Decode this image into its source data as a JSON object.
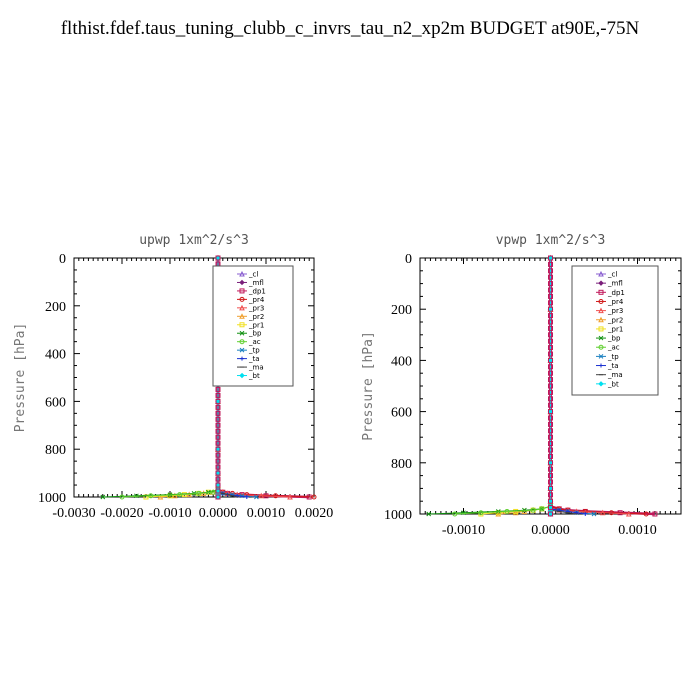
{
  "title": "flthist.fdef.taus_tuning_clubb_c_invrs_tau_n2_xp2m  BUDGET at90E,-75N",
  "colors": {
    "_cl": "#8a5fd0",
    "_mfl": "#7a1f7a",
    "_dp1": "#c0185a",
    "_pr4": "#d01818",
    "_pr3": "#f05050",
    "_pr2": "#f0a030",
    "_pr1": "#f0e020",
    "_bp": "#109010",
    "_ac": "#60d030",
    "_tp": "#1a80c0",
    "_ta": "#1a30d0",
    "_ma": "#404040",
    "_bt": "#00e0f0"
  },
  "chart_data": [
    {
      "type": "line",
      "title": "upwp   1xm^2/s^3",
      "ylabel": "Pressure [hPa]",
      "xlabel": "",
      "xlim": [
        -0.003,
        0.002
      ],
      "ylim": [
        1000,
        0
      ],
      "xticks": [
        "-0.0030",
        "-0.0020",
        "-0.0010",
        "0.0000",
        "0.0010",
        "0.0020"
      ],
      "xtick_values": [
        -0.003,
        -0.002,
        -0.001,
        0.0,
        0.001,
        0.002
      ],
      "yticks": [
        "0",
        "200",
        "400",
        "600",
        "800",
        "1000"
      ],
      "ytick_values": [
        0,
        200,
        400,
        600,
        800,
        1000
      ],
      "legend_position": "top-right",
      "legend": [
        "_cl",
        "_mfl",
        "_dp1",
        "_pr4",
        "_pr3",
        "_pr2",
        "_pr1",
        "_bp",
        "_ac",
        "_tp",
        "_ta",
        "_ma",
        "_bt"
      ],
      "pressure": [
        1000,
        995,
        990,
        985,
        980,
        970,
        950,
        900,
        800,
        600,
        400,
        200,
        0
      ],
      "series": [
        {
          "name": "_cl",
          "values": [
            0,
            0,
            0,
            0,
            0,
            0,
            0,
            0,
            0,
            0,
            0,
            0,
            0
          ]
        },
        {
          "name": "_mfl",
          "values": [
            0,
            0,
            0,
            0,
            0,
            0,
            0,
            0,
            0,
            0,
            0,
            0,
            0
          ]
        },
        {
          "name": "_dp1",
          "values": [
            0.0019,
            0.001,
            0.0005,
            0.0002,
            0.0001,
            0,
            0,
            0,
            0,
            0,
            0,
            0,
            0
          ]
        },
        {
          "name": "_pr4",
          "values": [
            0.002,
            0.0012,
            0.0006,
            0.0003,
            0.0001,
            0,
            0,
            0,
            0,
            0,
            0,
            0,
            0
          ]
        },
        {
          "name": "_pr3",
          "values": [
            0.0015,
            0.0009,
            0.0004,
            0.0002,
            0.0001,
            0,
            0,
            0,
            0,
            0,
            0,
            0,
            0
          ]
        },
        {
          "name": "_pr2",
          "values": [
            -0.0012,
            -0.0009,
            -0.0006,
            -0.0003,
            -0.0001,
            0,
            0,
            0,
            0,
            0,
            0,
            0,
            0
          ]
        },
        {
          "name": "_pr1",
          "values": [
            -0.0015,
            -0.001,
            -0.0007,
            -0.0004,
            -0.0002,
            0,
            0,
            0,
            0,
            0,
            0,
            0,
            0
          ]
        },
        {
          "name": "_bp",
          "values": [
            -0.0024,
            -0.0017,
            -0.001,
            -0.0005,
            -0.0002,
            0,
            0,
            0,
            0,
            0,
            0,
            0,
            0
          ]
        },
        {
          "name": "_ac",
          "values": [
            -0.002,
            -0.0014,
            -0.0008,
            -0.0004,
            -0.0001,
            0,
            0,
            0,
            0,
            0,
            0,
            0,
            0
          ]
        },
        {
          "name": "_tp",
          "values": [
            0.0008,
            0.0005,
            0.0003,
            0.0001,
            0,
            0,
            0,
            0,
            0,
            0,
            0,
            0,
            0
          ]
        },
        {
          "name": "_ta",
          "values": [
            0.0006,
            0.0004,
            0.0002,
            0.0001,
            0,
            0,
            0,
            0,
            0,
            0,
            0,
            0,
            0
          ]
        },
        {
          "name": "_ma",
          "values": [
            0.0004,
            0.0003,
            0.0002,
            0.0001,
            0,
            0,
            0,
            0,
            0,
            0,
            0,
            0,
            0
          ]
        },
        {
          "name": "_bt",
          "values": [
            0,
            0,
            0,
            0,
            0,
            0,
            0,
            0,
            0,
            0,
            0,
            0,
            0
          ]
        }
      ]
    },
    {
      "type": "line",
      "title": "vpwp   1xm^2/s^3",
      "ylabel": "Pressure [hPa]",
      "xlabel": "",
      "xlim": [
        -0.0015,
        0.0015
      ],
      "ylim": [
        1000,
        0
      ],
      "xticks": [
        "-0.0010",
        "0.0000",
        "0.0010"
      ],
      "xtick_values": [
        -0.001,
        0.0,
        0.001
      ],
      "yticks": [
        "0",
        "200",
        "400",
        "600",
        "800",
        "1000"
      ],
      "ytick_values": [
        0,
        200,
        400,
        600,
        800,
        1000
      ],
      "legend_position": "top-right",
      "legend": [
        "_cl",
        "_mfl",
        "_dp1",
        "_pr4",
        "_pr3",
        "_pr2",
        "_pr1",
        "_bp",
        "_ac",
        "_tp",
        "_ta",
        "_ma",
        "_bt"
      ],
      "pressure": [
        1000,
        995,
        990,
        985,
        980,
        970,
        950,
        900,
        800,
        600,
        400,
        200,
        0
      ],
      "series": [
        {
          "name": "_cl",
          "values": [
            0,
            0,
            0,
            0,
            0,
            0,
            0,
            0,
            0,
            0,
            0,
            0,
            0
          ]
        },
        {
          "name": "_mfl",
          "values": [
            0,
            0,
            0,
            0,
            0,
            0,
            0,
            0,
            0,
            0,
            0,
            0,
            0
          ]
        },
        {
          "name": "_dp1",
          "values": [
            0.0012,
            0.0008,
            0.0004,
            0.0002,
            0.0001,
            0,
            0,
            0,
            0,
            0,
            0,
            0,
            0
          ]
        },
        {
          "name": "_pr4",
          "values": [
            0.0011,
            0.0007,
            0.0004,
            0.0002,
            0.0001,
            0,
            0,
            0,
            0,
            0,
            0,
            0,
            0
          ]
        },
        {
          "name": "_pr3",
          "values": [
            0.0009,
            0.0006,
            0.0003,
            0.0001,
            0,
            0,
            0,
            0,
            0,
            0,
            0,
            0,
            0
          ]
        },
        {
          "name": "_pr2",
          "values": [
            -0.0006,
            -0.0004,
            -0.0003,
            -0.0002,
            -0.0001,
            0,
            0,
            0,
            0,
            0,
            0,
            0,
            0
          ]
        },
        {
          "name": "_pr1",
          "values": [
            -0.0008,
            -0.0006,
            -0.0004,
            -0.0002,
            -0.0001,
            0,
            0,
            0,
            0,
            0,
            0,
            0,
            0
          ]
        },
        {
          "name": "_bp",
          "values": [
            -0.0014,
            -0.001,
            -0.0006,
            -0.0003,
            -0.0001,
            0,
            0,
            0,
            0,
            0,
            0,
            0,
            0
          ]
        },
        {
          "name": "_ac",
          "values": [
            -0.0011,
            -0.0008,
            -0.0005,
            -0.0002,
            -0.0001,
            0,
            0,
            0,
            0,
            0,
            0,
            0,
            0
          ]
        },
        {
          "name": "_tp",
          "values": [
            0.0005,
            0.0003,
            0.0002,
            0.0001,
            0,
            0,
            0,
            0,
            0,
            0,
            0,
            0,
            0
          ]
        },
        {
          "name": "_ta",
          "values": [
            0.0004,
            0.0003,
            0.0002,
            0.0001,
            0,
            0,
            0,
            0,
            0,
            0,
            0,
            0,
            0
          ]
        },
        {
          "name": "_ma",
          "values": [
            0.0003,
            0.0002,
            0.0001,
            0,
            0,
            0,
            0,
            0,
            0,
            0,
            0,
            0,
            0
          ]
        },
        {
          "name": "_bt",
          "values": [
            0,
            0,
            0,
            0,
            0,
            0,
            0,
            0,
            0,
            0,
            0,
            0,
            0
          ]
        }
      ]
    }
  ]
}
